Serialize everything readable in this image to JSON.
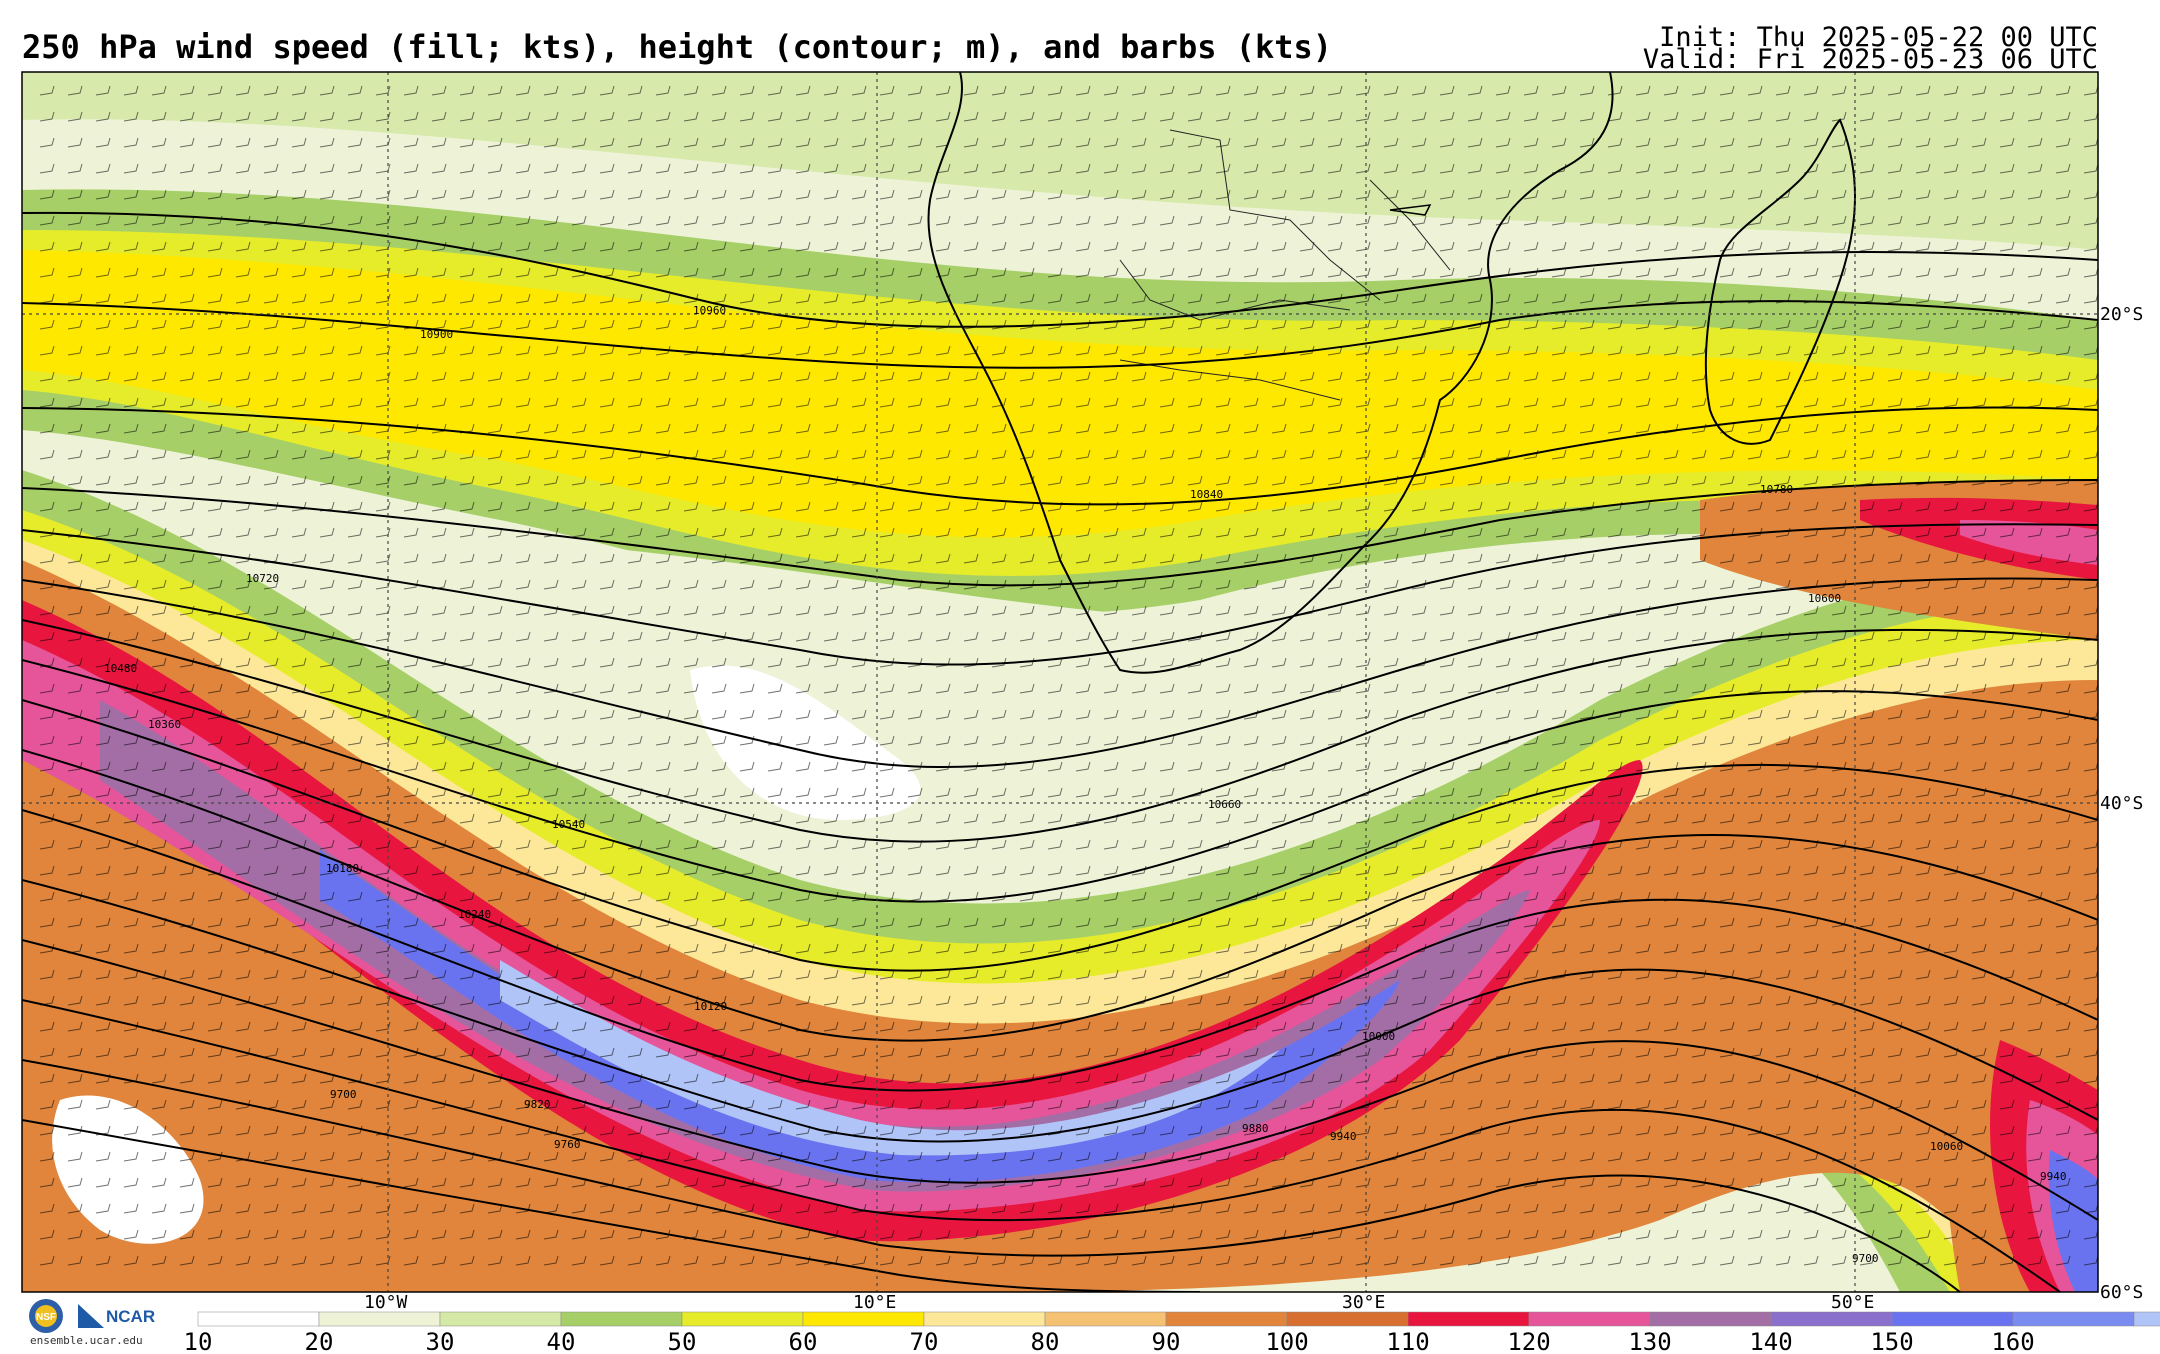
{
  "header": {
    "title": "250 hPa wind speed (fill; kts), height (contour; m), and barbs (kts)",
    "init": "Init: Thu 2025-05-22 00 UTC",
    "valid": "Valid: Fri 2025-05-23 06 UTC"
  },
  "axes": {
    "lon_labels": [
      "10°W",
      "10°E",
      "30°E",
      "50°E"
    ],
    "lat_labels": [
      "20°S",
      "40°S",
      "60°S"
    ]
  },
  "contours": {
    "labels": [
      "10960",
      "10900",
      "10840",
      "10780",
      "10720",
      "10660",
      "10600",
      "10540",
      "10480",
      "10360",
      "10180",
      "10240",
      "10120",
      "9820",
      "9760",
      "9700",
      "9880",
      "9940",
      "10000",
      "10060",
      "9940",
      "9700"
    ]
  },
  "colorbar": {
    "ticks": [
      "10",
      "20",
      "30",
      "40",
      "50",
      "60",
      "70",
      "80",
      "90",
      "100",
      "110",
      "120",
      "130",
      "140",
      "150",
      "160"
    ],
    "colors": [
      "#ffffff",
      "#eef3d8",
      "#d4e9a6",
      "#a6cf67",
      "#e6ec2a",
      "#ffe800",
      "#fde89a",
      "#f5c173",
      "#e0853b",
      "#d66f30",
      "#e8163e",
      "#e6559a",
      "#a36ea6",
      "#8b6fcc",
      "#6a73ef",
      "#7b8cf1",
      "#b0c4f7"
    ]
  },
  "logos": {
    "nsf": "NSF",
    "ncar": "NCAR",
    "url": "ensemble.ucar.edu"
  }
}
